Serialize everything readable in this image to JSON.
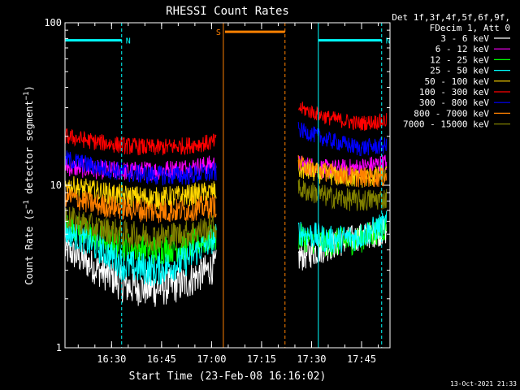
{
  "chart_data": {
    "type": "line",
    "title": "RHESSI Count Rates",
    "xlabel": "Start Time (23-Feb-08 16:16:02)",
    "ylabel_main": "Count Rate (s",
    "ylabel_sup": "−1",
    "ylabel_rest": " detector segment",
    "ylabel_close": ")",
    "x_unit": "minutes after 16:16:02",
    "xlim": [
      0,
      97.5
    ],
    "ylim": [
      1,
      100
    ],
    "yscale": "log",
    "x_ticks": [
      {
        "t": 13.97,
        "label": "16:30"
      },
      {
        "t": 28.97,
        "label": "16:45"
      },
      {
        "t": 43.97,
        "label": "17:00"
      },
      {
        "t": 58.97,
        "label": "17:15"
      },
      {
        "t": 73.97,
        "label": "17:30"
      },
      {
        "t": 88.97,
        "label": "17:45"
      }
    ],
    "y_ticks": [
      {
        "v": 1,
        "label": "1"
      },
      {
        "v": 10,
        "label": "10"
      },
      {
        "v": 100,
        "label": "100"
      }
    ],
    "legend_header": [
      "Det 1f,3f,4f,5f,6f,9f,",
      "FDecim 1, Att 0"
    ],
    "legend_position": "right",
    "data_gap": [
      46.5,
      69.5
    ],
    "series": [
      {
        "name": "3 - 6 keV",
        "color": "#ffffff",
        "values": [
          4.0,
          3.1,
          2.4,
          2.3,
          2.5,
          3.2,
          3.6,
          4.2,
          4.8,
          5.2
        ]
      },
      {
        "name": "6 - 12 keV",
        "color": "#ff00ff",
        "values": [
          13.0,
          12.5,
          12.2,
          12.3,
          12.8,
          13.5,
          13.5,
          12.5,
          12.8,
          13.8
        ]
      },
      {
        "name": "12 - 25 keV",
        "color": "#00ff00",
        "values": [
          5.8,
          4.8,
          4.2,
          4.0,
          4.2,
          4.8,
          4.8,
          4.4,
          4.6,
          5.5
        ]
      },
      {
        "name": "25 - 50 keV",
        "color": "#00ffff",
        "values": [
          5.2,
          4.2,
          3.2,
          3.0,
          3.4,
          4.8,
          5.2,
          4.6,
          4.8,
          5.8
        ]
      },
      {
        "name": "50 - 100 keV",
        "color": "#ffd700",
        "values": [
          10.0,
          9.2,
          8.6,
          8.3,
          8.6,
          9.2,
          12.5,
          11.5,
          11.0,
          11.5
        ]
      },
      {
        "name": "100 - 300 keV",
        "color": "#ff0000",
        "values": [
          20.0,
          18.5,
          17.5,
          17.0,
          17.5,
          18.5,
          30.0,
          26.0,
          24.0,
          25.0
        ]
      },
      {
        "name": "300 - 800 keV",
        "color": "#0000ff",
        "values": [
          14.5,
          13.0,
          12.0,
          11.5,
          11.5,
          12.0,
          22.0,
          19.0,
          17.0,
          17.5
        ]
      },
      {
        "name": "800 - 7000 keV",
        "color": "#ff8000",
        "values": [
          8.6,
          7.6,
          7.2,
          6.9,
          7.0,
          7.5,
          13.5,
          12.0,
          11.2,
          11.2
        ]
      },
      {
        "name": "7000 - 15000 keV",
        "color": "#808000",
        "values": [
          6.4,
          5.5,
          5.0,
          4.8,
          5.0,
          5.6,
          9.5,
          8.5,
          8.0,
          8.3
        ]
      }
    ],
    "series_times": [
      0,
      9,
      18,
      27,
      36,
      45.5,
      70,
      79,
      88,
      96.5
    ],
    "markers": [
      {
        "type": "attenuator",
        "label": "N",
        "color": "#00ffff",
        "start": 0,
        "end": 17,
        "level": 78
      },
      {
        "type": "attenuator",
        "label": "N",
        "color": "#00ffff",
        "start": 76,
        "end": 95,
        "level": 78
      },
      {
        "type": "saa",
        "label": "S",
        "color": "#ff8000",
        "start": 47.5,
        "end": 66,
        "level": 88
      }
    ]
  },
  "timestamp": "13-Oct-2021 21:33"
}
